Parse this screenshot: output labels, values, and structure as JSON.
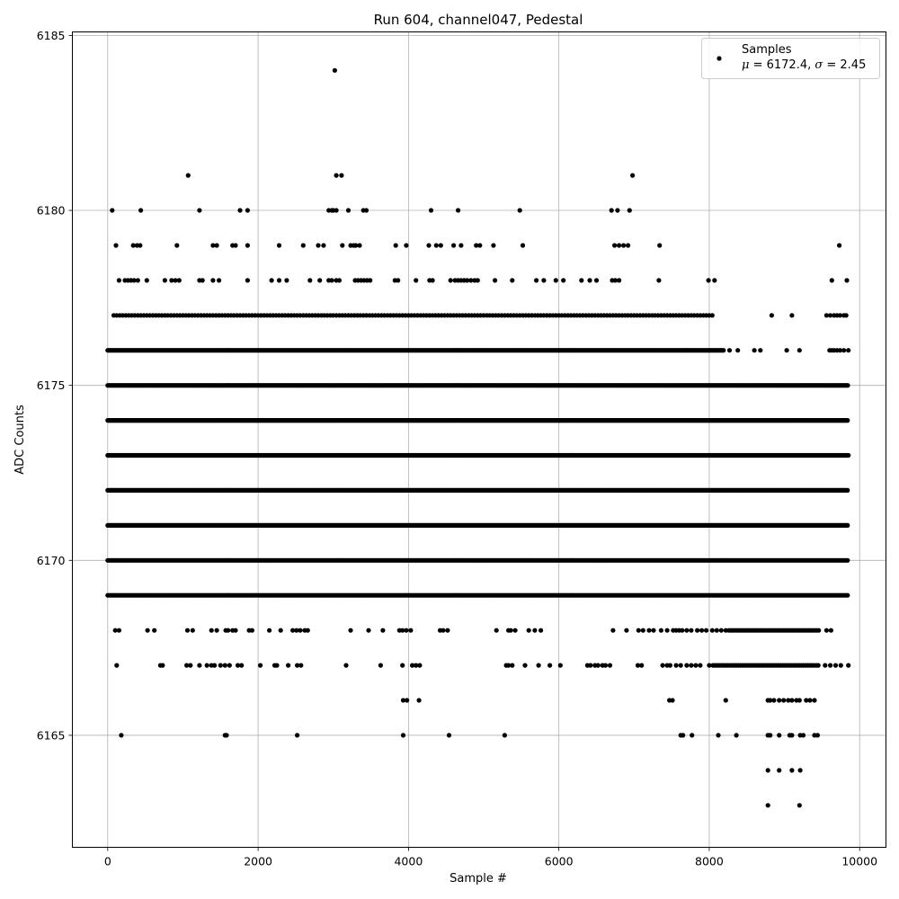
{
  "chart_data": {
    "type": "scatter",
    "title": "Run 604, channel047, Pedestal",
    "xlabel": "Sample #",
    "ylabel": "ADC Counts",
    "xlim": [
      -470,
      10350
    ],
    "ylim": [
      6161.8,
      6185.1
    ],
    "xticks": [
      0,
      2000,
      4000,
      6000,
      8000,
      10000
    ],
    "xtick_labels": [
      "0",
      "2000",
      "4000",
      "6000",
      "8000",
      "10000"
    ],
    "yticks": [
      6165,
      6170,
      6175,
      6180,
      6185
    ],
    "ytick_labels": [
      "6165",
      "6170",
      "6175",
      "6180",
      "6185"
    ],
    "grid": true,
    "marker_color": "#000000",
    "legend": {
      "placement": "top-right",
      "series_name": "Samples",
      "stats_mu_symbol": "μ",
      "stats_mu_value": " = 6172.4, ",
      "stats_sigma_symbol": "σ",
      "stats_sigma_value": " = 2.45"
    },
    "sample_range": [
      0,
      9850
    ],
    "levels": [
      {
        "y": 6163,
        "x": [
          8780,
          9200
        ]
      },
      {
        "y": 6164,
        "x": [
          8780,
          8930,
          9100,
          9210
        ]
      },
      {
        "y": 6165,
        "x": [
          180,
          1560,
          1580,
          2520,
          3930,
          4540,
          5280,
          7620,
          7650,
          7770,
          8120,
          8360,
          8780,
          8810,
          8930,
          9070,
          9100,
          9210,
          9250,
          9400,
          9440
        ]
      },
      {
        "y": 6166,
        "x": [
          3930,
          3980,
          4140,
          7470,
          7510,
          8220,
          8780,
          8810,
          8860,
          8930,
          8990,
          9050,
          9100,
          9160,
          9200,
          9290,
          9340,
          9400
        ]
      },
      {
        "y": 6167,
        "x": [
          120,
          700,
          730,
          1050,
          1100,
          1220,
          1320,
          1380,
          1420,
          1500,
          1560,
          1620,
          1730,
          1780,
          2030,
          2220,
          2250,
          2400,
          2520,
          2570,
          3170,
          3630,
          3920,
          4050,
          4100,
          4150,
          5300,
          5330,
          5380,
          5550,
          5730,
          5880,
          6020,
          6380,
          6420,
          6480,
          6520,
          6580,
          6620,
          6680,
          7050,
          7100,
          7380,
          7440,
          7480,
          7560,
          7620,
          7700,
          7760,
          7820,
          7880,
          8000,
          {
            "from": 8050,
            "to": 9450,
            "step": 28
          },
          9540,
          9610,
          9680,
          9750,
          9850
        ]
      },
      {
        "y": 6168,
        "x": [
          100,
          150,
          530,
          620,
          1060,
          1130,
          1380,
          1450,
          1570,
          1600,
          1660,
          1700,
          1880,
          1920,
          2150,
          2300,
          2460,
          2510,
          2560,
          2620,
          2660,
          3230,
          3470,
          3660,
          3880,
          3920,
          3970,
          4030,
          4420,
          4460,
          4520,
          5170,
          5330,
          5360,
          5420,
          5600,
          5680,
          5760,
          6720,
          6900,
          7060,
          7120,
          7200,
          7260,
          7360,
          7440,
          7520,
          7560,
          7600,
          7640,
          7700,
          7760,
          7840,
          7900,
          7960,
          8040,
          8100,
          8160,
          8220,
          {
            "from": 8260,
            "to": 9460,
            "step": 26
          },
          9560,
          9620
        ]
      },
      {
        "y": 6169,
        "x": [
          {
            "from": 0,
            "to": 9850,
            "step": 20
          }
        ]
      },
      {
        "y": 6170,
        "x": [
          {
            "from": 0,
            "to": 9850,
            "step": 20
          }
        ]
      },
      {
        "y": 6171,
        "x": [
          {
            "from": 0,
            "to": 9850,
            "step": 12
          }
        ]
      },
      {
        "y": 6172,
        "x": [
          {
            "from": 0,
            "to": 9850,
            "step": 12
          }
        ]
      },
      {
        "y": 6173,
        "x": [
          {
            "from": 0,
            "to": 9850,
            "step": 10
          }
        ]
      },
      {
        "y": 6174,
        "x": [
          {
            "from": 0,
            "to": 9850,
            "step": 12
          }
        ]
      },
      {
        "y": 6175,
        "x": [
          {
            "from": 0,
            "to": 9850,
            "step": 14
          }
        ]
      },
      {
        "y": 6176,
        "x": [
          {
            "from": 0,
            "to": 8200,
            "step": 14
          },
          8270,
          8380,
          8600,
          8680,
          9030,
          9200,
          9600,
          9630,
          9660,
          9700,
          9740,
          9790,
          9850
        ]
      },
      {
        "y": 6177,
        "x": [
          {
            "from": 80,
            "to": 8050,
            "step": 40
          },
          8830,
          9100,
          9560,
          9610,
          9660,
          9700,
          9740,
          9790,
          9820
        ]
      },
      {
        "y": 6178,
        "x": [
          150,
          230,
          270,
          310,
          350,
          400,
          520,
          760,
          850,
          900,
          950,
          1220,
          1260,
          1400,
          1480,
          1860,
          2180,
          2280,
          2380,
          2690,
          2820,
          2940,
          2980,
          3040,
          3080,
          3290,
          3330,
          3370,
          3410,
          3450,
          3490,
          3820,
          3860,
          4100,
          4280,
          4320,
          4560,
          4620,
          4660,
          4700,
          4740,
          4780,
          4830,
          4880,
          4920,
          5150,
          5380,
          5700,
          5800,
          5960,
          6060,
          6300,
          6410,
          6500,
          6710,
          6750,
          6800,
          7330,
          7990,
          8070,
          9630,
          9830
        ]
      },
      {
        "y": 6179,
        "x": [
          110,
          340,
          390,
          430,
          920,
          1400,
          1450,
          1660,
          1700,
          1860,
          2280,
          2600,
          2800,
          2870,
          3120,
          3230,
          3270,
          3300,
          3350,
          3830,
          3970,
          4270,
          4370,
          4430,
          4600,
          4700,
          4900,
          4950,
          5130,
          5520,
          6740,
          6800,
          6860,
          6920,
          7340,
          9730
        ]
      },
      {
        "y": 6180,
        "x": [
          60,
          440,
          1220,
          1760,
          1860,
          2940,
          2980,
          3000,
          3040,
          3200,
          3400,
          3440,
          4300,
          4660,
          5480,
          6700,
          6780,
          6940
        ]
      },
      {
        "y": 6181,
        "x": [
          1070,
          3040,
          3110,
          6980
        ]
      },
      {
        "y": 6184,
        "x": [
          3020
        ]
      }
    ]
  }
}
